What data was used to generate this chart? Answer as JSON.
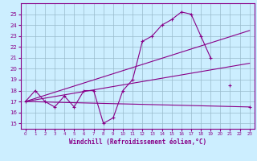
{
  "xlabel": "Windchill (Refroidissement éolien,°C)",
  "bg_color": "#cceeff",
  "grid_color": "#99bbcc",
  "line_color": "#880088",
  "xlim": [
    -0.5,
    23.5
  ],
  "ylim": [
    14.5,
    26.0
  ],
  "yticks": [
    15,
    16,
    17,
    18,
    19,
    20,
    21,
    22,
    23,
    24,
    25
  ],
  "xticks": [
    0,
    1,
    2,
    3,
    4,
    5,
    6,
    7,
    8,
    9,
    10,
    11,
    12,
    13,
    14,
    15,
    16,
    17,
    18,
    19,
    20,
    21,
    22,
    23
  ],
  "series_x": [
    0,
    1,
    2,
    3,
    4,
    5,
    6,
    7,
    8,
    9,
    10,
    11,
    12,
    13,
    14,
    15,
    16,
    17,
    18,
    19,
    20,
    21,
    22,
    23
  ],
  "series_y": [
    17.0,
    18.0,
    17.0,
    16.5,
    17.5,
    16.5,
    18.0,
    18.0,
    15.0,
    15.5,
    18.0,
    19.0,
    22.5,
    23.0,
    24.0,
    24.5,
    25.2,
    25.0,
    23.0,
    21.0,
    null,
    18.5,
    null,
    16.5
  ],
  "line1_x": [
    0,
    23
  ],
  "line1_y": [
    17.0,
    16.5
  ],
  "line2_x": [
    0,
    23
  ],
  "line2_y": [
    17.0,
    23.5
  ],
  "line3_x": [
    0,
    23
  ],
  "line3_y": [
    17.0,
    20.5
  ]
}
